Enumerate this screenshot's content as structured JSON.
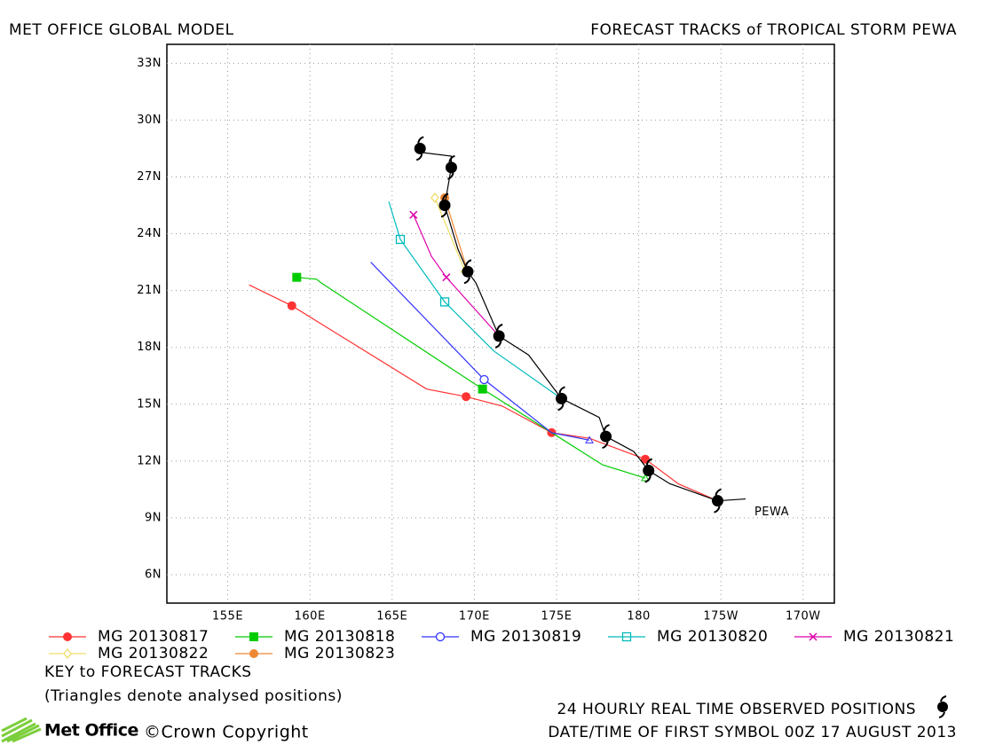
{
  "chart_data": {
    "type": "track",
    "title": "MET OFFICE GLOBAL MODEL",
    "subtitle": "FORECAST TRACKS of TROPICAL STORM PEWA",
    "xlim": [
      151.3,
      191.9
    ],
    "ylim": [
      4.5,
      34
    ],
    "xticks": [
      {
        "value": 155,
        "label": "155E"
      },
      {
        "value": 160,
        "label": "160E"
      },
      {
        "value": 165,
        "label": "165E"
      },
      {
        "value": 170,
        "label": "170E"
      },
      {
        "value": 175,
        "label": "175E"
      },
      180,
      {
        "value": 185,
        "label": "175W"
      },
      {
        "value": 190,
        "label": "170W"
      }
    ],
    "yticks": [
      {
        "value": 6,
        "label": "6N"
      },
      {
        "value": 9,
        "label": "9N"
      },
      {
        "value": 12,
        "label": "12N"
      },
      {
        "value": 15,
        "label": "15N"
      },
      {
        "value": 18,
        "label": "18N"
      },
      {
        "value": 21,
        "label": "21N"
      },
      {
        "value": 24,
        "label": "24N"
      },
      {
        "value": 27,
        "label": "27N"
      },
      {
        "value": 30,
        "label": "30N"
      },
      {
        "value": 33,
        "label": "33N"
      }
    ],
    "grid": true,
    "annotation": "PEWA",
    "observed": {
      "color": "#000000",
      "x": [
        186.5,
        184.8,
        181.9,
        180.6,
        179.7,
        178.0,
        177.6,
        175.3,
        173.3,
        171.5,
        170.1,
        169.6,
        169.0,
        168.2,
        168.6,
        168.6,
        166.7,
        166.7
      ],
      "values": [
        10.0,
        9.9,
        10.8,
        11.5,
        12.5,
        13.3,
        14.3,
        15.3,
        17.6,
        18.6,
        21.4,
        22.0,
        23.2,
        25.5,
        27.5,
        28.1,
        28.3,
        28.5
      ],
      "marker_x": [
        184.8,
        180.6,
        178.0,
        175.3,
        171.5,
        169.6,
        168.2,
        168.6,
        166.7
      ],
      "marker_values": [
        9.9,
        11.5,
        13.3,
        15.3,
        18.6,
        22.0,
        25.5,
        27.5,
        28.5
      ]
    },
    "series": [
      {
        "name": "MG 20130817",
        "color": "#ff3333",
        "marker": "circle-filled",
        "x": [
          156.3,
          158.9,
          167.1,
          169.5,
          171.7,
          174.7,
          177.0,
          180.4,
          182.4,
          184.8
        ],
        "values": [
          21.3,
          20.2,
          15.8,
          15.4,
          14.9,
          13.5,
          13.2,
          12.1,
          10.8,
          9.9
        ],
        "marker_x": [
          158.9,
          169.5,
          174.7,
          180.4,
          184.8
        ],
        "marker_values": [
          20.2,
          15.4,
          13.5,
          12.1,
          9.9
        ]
      },
      {
        "name": "MG 20130818",
        "color": "#00cc00",
        "marker": "square-filled",
        "x": [
          159.2,
          160.4,
          160.7,
          170.5,
          174.7,
          177.8,
          180.4
        ],
        "values": [
          21.7,
          21.6,
          21.4,
          15.8,
          13.5,
          11.8,
          11.1
        ],
        "marker_x": [
          159.2,
          170.5
        ],
        "marker_values": [
          21.7,
          15.8
        ]
      },
      {
        "name": "MG 20130819",
        "color": "#3333ff",
        "marker": "circle-open",
        "x": [
          163.7,
          170.6,
          174.7,
          177.0
        ],
        "values": [
          22.5,
          16.3,
          13.5,
          13.1
        ],
        "marker_x": [
          170.6
        ],
        "marker_values": [
          16.3
        ]
      },
      {
        "name": "MG 20130820",
        "color": "#00bbbb",
        "marker": "square-open",
        "x": [
          164.8,
          165.5,
          168.2,
          171.2,
          175.3
        ],
        "values": [
          25.7,
          23.7,
          20.4,
          17.8,
          15.3
        ],
        "marker_x": [
          165.5,
          168.2
        ],
        "marker_values": [
          23.7,
          20.4
        ]
      },
      {
        "name": "MG 20130821",
        "color": "#dd00aa",
        "marker": "cross",
        "x": [
          166.3,
          167.4,
          168.3,
          171.5
        ],
        "values": [
          25.0,
          22.8,
          21.7,
          18.6
        ],
        "marker_x": [
          166.3,
          168.3
        ],
        "marker_values": [
          25.0,
          21.7
        ]
      },
      {
        "name": "MG 20130822",
        "color": "#eedd66",
        "marker": "diamond-open",
        "x": [
          167.6,
          169.4
        ],
        "values": [
          25.9,
          22.1
        ],
        "marker_x": [
          167.6
        ],
        "marker_values": [
          25.9
        ]
      },
      {
        "name": "MG 20130823",
        "color": "#ee8833",
        "marker": "circle-filled",
        "x": [
          168.2,
          169.6
        ],
        "values": [
          25.9,
          22.0
        ],
        "marker_x": [
          168.2
        ],
        "marker_values": [
          25.9
        ]
      }
    ],
    "key_title": "KEY to FORECAST TRACKS",
    "key_note": "(Triangles denote analysed positions)",
    "observed_note": "24 HOURLY REAL TIME OBSERVED POSITIONS",
    "datetime_note": "DATE/TIME OF FIRST SYMBOL 00Z 17 AUGUST 2013",
    "logo": "Met Office",
    "copyright": "©Crown Copyright"
  }
}
